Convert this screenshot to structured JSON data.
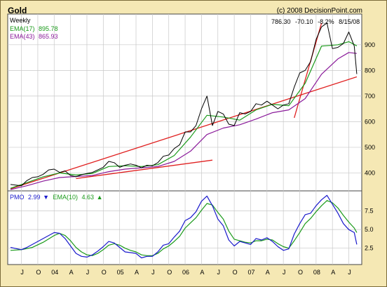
{
  "header": {
    "title": "Gold",
    "copyright": "(c) 2008 DecisionPoint.com"
  },
  "colors": {
    "price": "#000000",
    "ema17": "#1a9a1a",
    "ema43": "#8a1a9a",
    "trendline": "#e02020",
    "pmo": "#1a1acc",
    "pmo_ema": "#1a9a1a",
    "panel_bg": "#ffffff",
    "frame_bg": "#f5e8b4",
    "grid": "#c8c8c8"
  },
  "chart_data": [
    {
      "type": "line",
      "panel": "price",
      "title": "Weekly",
      "readout": {
        "price": "786.30",
        "change": "-70.10",
        "pct": "-8.2%",
        "date": "8/15/08"
      },
      "ylim": [
        330,
        1020
      ],
      "yticks": [
        400,
        500,
        600,
        700,
        800,
        900
      ],
      "grid": true,
      "x_range": [
        "2003-05",
        "2008-08"
      ],
      "x_tick_labels": [
        "J",
        "O",
        "04",
        "A",
        "J",
        "O",
        "05",
        "A",
        "J",
        "O",
        "06",
        "A",
        "J",
        "O",
        "07",
        "A",
        "J",
        "O",
        "08",
        "A",
        "J"
      ],
      "series": [
        {
          "name": "Price",
          "values": [
            [
              "2003-05",
              355
            ],
            [
              "2003-07",
              350
            ],
            [
              "2003-08",
              370
            ],
            [
              "2003-09",
              382
            ],
            [
              "2003-10",
              385
            ],
            [
              "2003-11",
              395
            ],
            [
              "2003-12",
              412
            ],
            [
              "2004-01",
              415
            ],
            [
              "2004-02",
              402
            ],
            [
              "2004-03",
              408
            ],
            [
              "2004-04",
              390
            ],
            [
              "2004-05",
              385
            ],
            [
              "2004-06",
              393
            ],
            [
              "2004-07",
              398
            ],
            [
              "2004-08",
              402
            ],
            [
              "2004-09",
              412
            ],
            [
              "2004-10",
              422
            ],
            [
              "2004-11",
              445
            ],
            [
              "2004-12",
              440
            ],
            [
              "2005-01",
              422
            ],
            [
              "2005-02",
              430
            ],
            [
              "2005-03",
              435
            ],
            [
              "2005-04",
              430
            ],
            [
              "2005-05",
              420
            ],
            [
              "2005-06",
              430
            ],
            [
              "2005-07",
              428
            ],
            [
              "2005-08",
              440
            ],
            [
              "2005-09",
              465
            ],
            [
              "2005-10",
              470
            ],
            [
              "2005-11",
              495
            ],
            [
              "2005-12",
              510
            ],
            [
              "2006-01",
              560
            ],
            [
              "2006-02",
              560
            ],
            [
              "2006-03",
              585
            ],
            [
              "2006-04",
              650
            ],
            [
              "2006-05",
              700
            ],
            [
              "2006-06",
              585
            ],
            [
              "2006-07",
              640
            ],
            [
              "2006-08",
              630
            ],
            [
              "2006-09",
              590
            ],
            [
              "2006-10",
              585
            ],
            [
              "2006-11",
              635
            ],
            [
              "2006-12",
              630
            ],
            [
              "2007-01",
              640
            ],
            [
              "2007-02",
              670
            ],
            [
              "2007-03",
              665
            ],
            [
              "2007-04",
              680
            ],
            [
              "2007-05",
              665
            ],
            [
              "2007-06",
              650
            ],
            [
              "2007-07",
              665
            ],
            [
              "2007-08",
              670
            ],
            [
              "2007-09",
              735
            ],
            [
              "2007-10",
              790
            ],
            [
              "2007-11",
              800
            ],
            [
              "2007-12",
              835
            ],
            [
              "2008-01",
              920
            ],
            [
              "2008-02",
              970
            ],
            [
              "2008-03",
              985
            ],
            [
              "2008-04",
              885
            ],
            [
              "2008-05",
              890
            ],
            [
              "2008-06",
              905
            ],
            [
              "2008-07",
              950
            ],
            [
              "2008-08-01",
              895
            ],
            [
              "2008-08-15",
              786
            ]
          ]
        },
        {
          "name": "EMA(17)",
          "legend_value": "895.78",
          "values": [
            [
              "2003-05",
              340
            ],
            [
              "2003-08",
              362
            ],
            [
              "2003-11",
              385
            ],
            [
              "2004-02",
              400
            ],
            [
              "2004-05",
              392
            ],
            [
              "2004-08",
              398
            ],
            [
              "2004-11",
              425
            ],
            [
              "2005-02",
              428
            ],
            [
              "2005-05",
              425
            ],
            [
              "2005-08",
              432
            ],
            [
              "2005-11",
              468
            ],
            [
              "2006-02",
              540
            ],
            [
              "2006-05",
              625
            ],
            [
              "2006-08",
              618
            ],
            [
              "2006-11",
              606
            ],
            [
              "2007-02",
              646
            ],
            [
              "2007-05",
              668
            ],
            [
              "2007-08",
              662
            ],
            [
              "2007-11",
              750
            ],
            [
              "2008-02",
              895
            ],
            [
              "2008-05",
              900
            ],
            [
              "2008-07",
              912
            ],
            [
              "2008-08-15",
              896
            ]
          ]
        },
        {
          "name": "EMA(43)",
          "legend_value": "865.93",
          "values": [
            [
              "2003-05",
              335
            ],
            [
              "2003-08",
              350
            ],
            [
              "2003-11",
              368
            ],
            [
              "2004-02",
              382
            ],
            [
              "2004-05",
              386
            ],
            [
              "2004-08",
              390
            ],
            [
              "2004-11",
              405
            ],
            [
              "2005-02",
              415
            ],
            [
              "2005-05",
              420
            ],
            [
              "2005-08",
              425
            ],
            [
              "2005-11",
              445
            ],
            [
              "2006-02",
              485
            ],
            [
              "2006-05",
              550
            ],
            [
              "2006-08",
              575
            ],
            [
              "2006-11",
              588
            ],
            [
              "2007-02",
              610
            ],
            [
              "2007-05",
              635
            ],
            [
              "2007-08",
              646
            ],
            [
              "2007-11",
              690
            ],
            [
              "2008-02",
              785
            ],
            [
              "2008-05",
              845
            ],
            [
              "2008-07",
              870
            ],
            [
              "2008-08-15",
              866
            ]
          ]
        }
      ],
      "trendlines": [
        [
          [
            "2003-05",
            338
          ],
          [
            "2008-08-15",
            775
          ]
        ],
        [
          [
            "2004-05",
            378
          ],
          [
            "2006-06",
            450
          ]
        ],
        [
          [
            "2007-09",
            615
          ],
          [
            "2008-02",
            985
          ]
        ]
      ]
    },
    {
      "type": "line",
      "panel": "pmo",
      "legend": {
        "pmo": "2.99",
        "pmo_ema": "4.63"
      },
      "ylim": [
        0.3,
        10.2
      ],
      "yticks": [
        2.5,
        5.0,
        7.5
      ],
      "grid": true,
      "series": [
        {
          "name": "PMO",
          "values": [
            [
              "2003-05",
              2.6
            ],
            [
              "2003-07",
              2.3
            ],
            [
              "2003-08",
              2.6
            ],
            [
              "2003-09",
              3.0
            ],
            [
              "2003-11",
              3.8
            ],
            [
              "2004-01",
              4.6
            ],
            [
              "2004-02",
              4.5
            ],
            [
              "2004-03",
              3.8
            ],
            [
              "2004-04",
              2.8
            ],
            [
              "2004-05",
              1.8
            ],
            [
              "2004-06",
              1.4
            ],
            [
              "2004-07",
              1.3
            ],
            [
              "2004-08",
              1.6
            ],
            [
              "2004-09",
              2.1
            ],
            [
              "2004-10",
              2.7
            ],
            [
              "2004-11",
              3.4
            ],
            [
              "2004-12",
              3.2
            ],
            [
              "2005-01",
              2.6
            ],
            [
              "2005-02",
              2.0
            ],
            [
              "2005-03",
              1.9
            ],
            [
              "2005-04",
              1.8
            ],
            [
              "2005-05",
              1.2
            ],
            [
              "2005-06",
              1.4
            ],
            [
              "2005-07",
              1.4
            ],
            [
              "2005-08",
              2.0
            ],
            [
              "2005-09",
              2.9
            ],
            [
              "2005-10",
              3.1
            ],
            [
              "2005-11",
              4.0
            ],
            [
              "2005-12",
              4.8
            ],
            [
              "2006-01",
              6.2
            ],
            [
              "2006-02",
              6.6
            ],
            [
              "2006-03",
              7.4
            ],
            [
              "2006-04",
              8.8
            ],
            [
              "2006-05",
              9.5
            ],
            [
              "2006-06",
              8.2
            ],
            [
              "2006-07",
              6.4
            ],
            [
              "2006-08",
              5.5
            ],
            [
              "2006-09",
              3.6
            ],
            [
              "2006-10",
              2.8
            ],
            [
              "2006-11",
              3.4
            ],
            [
              "2006-12",
              3.2
            ],
            [
              "2007-01",
              3.0
            ],
            [
              "2007-02",
              3.8
            ],
            [
              "2007-03",
              3.6
            ],
            [
              "2007-04",
              3.9
            ],
            [
              "2007-05",
              3.4
            ],
            [
              "2007-06",
              2.7
            ],
            [
              "2007-07",
              2.2
            ],
            [
              "2007-08",
              2.4
            ],
            [
              "2007-09",
              4.4
            ],
            [
              "2007-10",
              5.8
            ],
            [
              "2007-11",
              7.0
            ],
            [
              "2007-12",
              7.2
            ],
            [
              "2008-01",
              8.2
            ],
            [
              "2008-02",
              9.0
            ],
            [
              "2008-03",
              9.6
            ],
            [
              "2008-04",
              8.4
            ],
            [
              "2008-05",
              7.2
            ],
            [
              "2008-06",
              5.8
            ],
            [
              "2008-07",
              5.0
            ],
            [
              "2008-08-01",
              4.6
            ],
            [
              "2008-08-15",
              3.0
            ]
          ]
        },
        {
          "name": "EMA(10)",
          "values": [
            [
              "2003-05",
              2.2
            ],
            [
              "2003-07",
              2.3
            ],
            [
              "2003-09",
              2.6
            ],
            [
              "2003-11",
              3.3
            ],
            [
              "2004-01",
              4.2
            ],
            [
              "2004-02",
              4.5
            ],
            [
              "2004-03",
              4.2
            ],
            [
              "2004-04",
              3.5
            ],
            [
              "2004-05",
              2.6
            ],
            [
              "2004-06",
              2.0
            ],
            [
              "2004-07",
              1.6
            ],
            [
              "2004-08",
              1.5
            ],
            [
              "2004-09",
              1.8
            ],
            [
              "2004-10",
              2.3
            ],
            [
              "2004-11",
              2.9
            ],
            [
              "2004-12",
              3.1
            ],
            [
              "2005-01",
              2.9
            ],
            [
              "2005-02",
              2.5
            ],
            [
              "2005-03",
              2.2
            ],
            [
              "2005-04",
              2.0
            ],
            [
              "2005-05",
              1.6
            ],
            [
              "2005-06",
              1.5
            ],
            [
              "2005-07",
              1.5
            ],
            [
              "2005-08",
              1.8
            ],
            [
              "2005-09",
              2.4
            ],
            [
              "2005-10",
              2.8
            ],
            [
              "2005-11",
              3.4
            ],
            [
              "2005-12",
              4.1
            ],
            [
              "2006-01",
              5.2
            ],
            [
              "2006-02",
              5.9
            ],
            [
              "2006-03",
              6.6
            ],
            [
              "2006-04",
              7.6
            ],
            [
              "2006-05",
              8.5
            ],
            [
              "2006-06",
              8.3
            ],
            [
              "2006-07",
              7.3
            ],
            [
              "2006-08",
              6.4
            ],
            [
              "2006-09",
              4.8
            ],
            [
              "2006-10",
              3.7
            ],
            [
              "2006-11",
              3.5
            ],
            [
              "2006-12",
              3.3
            ],
            [
              "2007-01",
              3.2
            ],
            [
              "2007-02",
              3.5
            ],
            [
              "2007-03",
              3.5
            ],
            [
              "2007-04",
              3.7
            ],
            [
              "2007-05",
              3.6
            ],
            [
              "2007-06",
              3.1
            ],
            [
              "2007-07",
              2.7
            ],
            [
              "2007-08",
              2.5
            ],
            [
              "2007-09",
              3.5
            ],
            [
              "2007-10",
              4.6
            ],
            [
              "2007-11",
              5.8
            ],
            [
              "2007-12",
              6.5
            ],
            [
              "2008-01",
              7.4
            ],
            [
              "2008-02",
              8.2
            ],
            [
              "2008-03",
              8.9
            ],
            [
              "2008-04",
              8.6
            ],
            [
              "2008-05",
              7.9
            ],
            [
              "2008-06",
              6.9
            ],
            [
              "2008-07",
              6.0
            ],
            [
              "2008-08-01",
              5.2
            ],
            [
              "2008-08-15",
              4.6
            ]
          ]
        }
      ]
    }
  ]
}
